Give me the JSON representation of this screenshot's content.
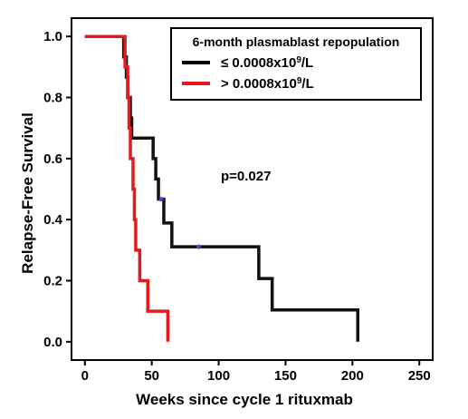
{
  "chart_data": {
    "type": "line",
    "xlabel": "Weeks since cycle 1 rituxmab",
    "ylabel": "Relapse-Free Survival",
    "xlim": [
      -10,
      260
    ],
    "ylim": [
      -0.06,
      1.06
    ],
    "xticks": [
      0,
      50,
      100,
      150,
      200,
      250
    ],
    "yticks": [
      0.0,
      0.2,
      0.4,
      0.6,
      0.8,
      1.0
    ],
    "xtick_labels": [
      "0",
      "50",
      "100",
      "150",
      "200",
      "250"
    ],
    "ytick_labels": [
      "0.0",
      "0.2",
      "0.4",
      "0.6",
      "0.8",
      "1.0"
    ],
    "grid": false,
    "legend": {
      "title": "6-month plasmablast repopulation",
      "position": "top-right",
      "entries": [
        {
          "prefix": "≤ 0.0008x10",
          "sup": "9",
          "suffix": "/L",
          "color": "#000000"
        },
        {
          "prefix": "> 0.0008x10",
          "sup": "9",
          "suffix": "/L",
          "color": "#e41a1c"
        }
      ]
    },
    "annotation": "p=0.027",
    "series": [
      {
        "color": "#111111",
        "censor_color": "#4444cc",
        "steps": [
          [
            0,
            1.0
          ],
          [
            29,
            0.933
          ],
          [
            31,
            0.867
          ],
          [
            32,
            0.8
          ],
          [
            34,
            0.733
          ],
          [
            35,
            0.667
          ],
          [
            51,
            0.6
          ],
          [
            53,
            0.533
          ],
          [
            55,
            0.467
          ],
          [
            59,
            0.389
          ],
          [
            65,
            0.311
          ],
          [
            130,
            0.207
          ],
          [
            140,
            0.104
          ],
          [
            204,
            0.0
          ]
        ],
        "end": 204,
        "censored": [
          [
            57,
            0.467
          ],
          [
            85,
            0.311
          ]
        ]
      },
      {
        "color": "#e41a1c",
        "steps": [
          [
            0,
            1.0
          ],
          [
            30,
            0.9
          ],
          [
            32,
            0.8
          ],
          [
            33,
            0.7
          ],
          [
            34,
            0.6
          ],
          [
            36,
            0.5
          ],
          [
            37,
            0.4
          ],
          [
            38,
            0.3
          ],
          [
            41,
            0.2
          ],
          [
            47,
            0.1
          ],
          [
            62,
            0.0
          ]
        ],
        "end": 62,
        "censored": []
      }
    ]
  }
}
